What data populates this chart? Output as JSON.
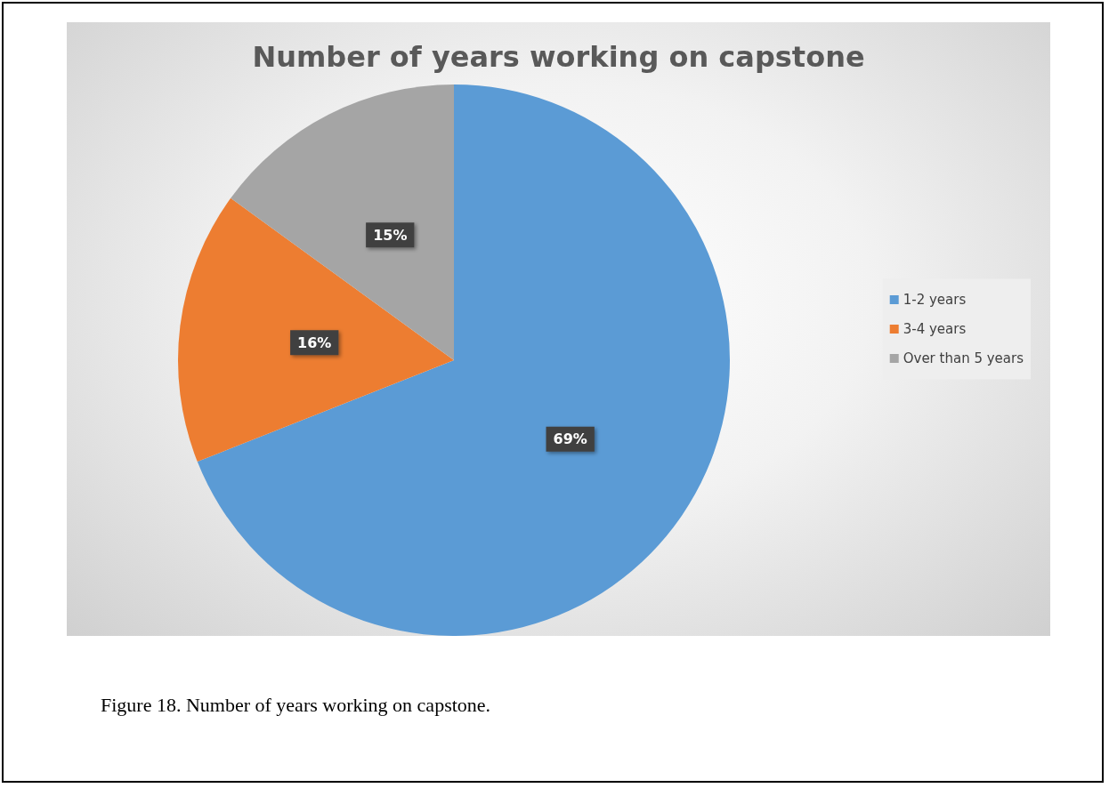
{
  "chart_data": {
    "type": "pie",
    "title": "Number of years working on capstone",
    "categories": [
      "1-2 years",
      "3-4 years",
      "Over than 5 years"
    ],
    "values": [
      69,
      16,
      15
    ],
    "value_labels": [
      "69%",
      "16%",
      "15%"
    ],
    "colors": [
      "#5b9bd5",
      "#ed7d31",
      "#a5a5a5"
    ],
    "legend": "right",
    "annotations": [
      "Figure 18. Number of years working on capstone."
    ]
  }
}
